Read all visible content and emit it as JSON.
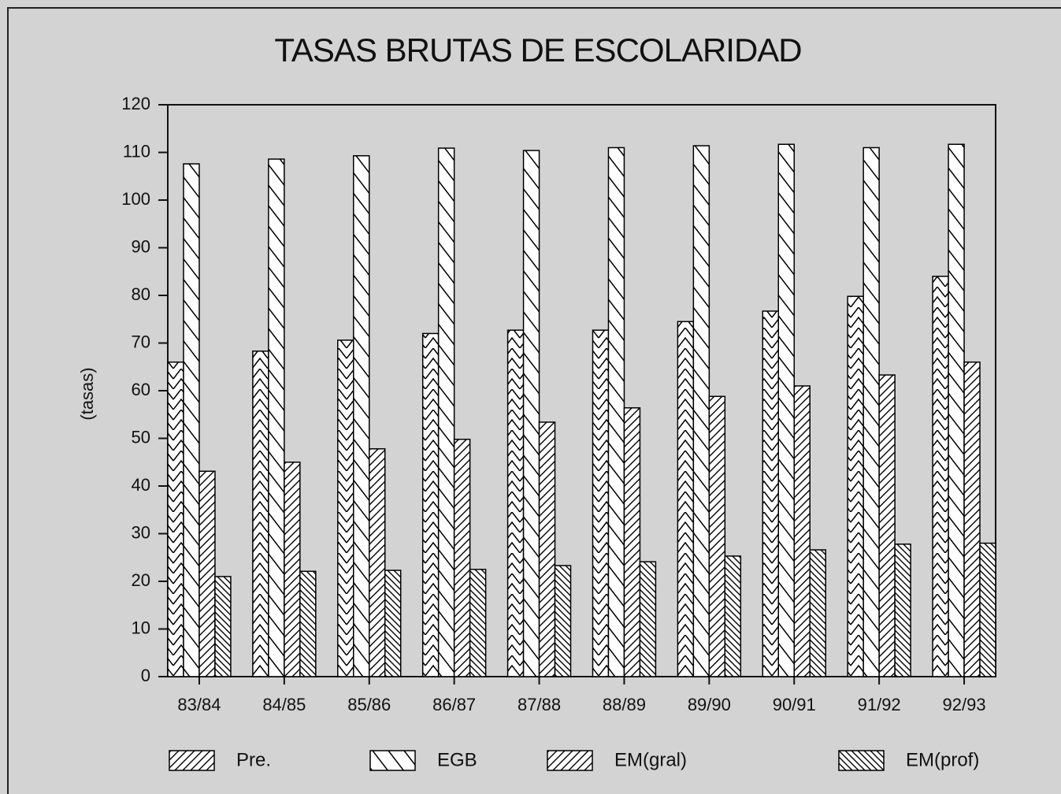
{
  "chart_data": {
    "type": "bar",
    "title": "TASAS BRUTAS DE ESCOLARIDAD",
    "y_label": "(tasas)",
    "categories": [
      "83/84",
      "84/85",
      "85/86",
      "86/87",
      "87/88",
      "88/89",
      "89/90",
      "90/91",
      "91/92",
      "92/93"
    ],
    "series": [
      {
        "name": "Pre.",
        "values": [
          66,
          68.3,
          70.6,
          72,
          72.7,
          72.7,
          74.5,
          76.7,
          79.8,
          84
        ]
      },
      {
        "name": "EGB",
        "values": [
          107.6,
          108.6,
          109.3,
          110.9,
          110.4,
          111,
          111.4,
          111.7,
          111,
          111.7
        ]
      },
      {
        "name": "EM(gral)",
        "values": [
          43.1,
          45,
          47.8,
          49.8,
          53.4,
          56.4,
          58.8,
          61,
          63.3,
          66
        ]
      },
      {
        "name": "EM(prof)",
        "values": [
          21,
          22.1,
          22.3,
          22.5,
          23.3,
          24.1,
          25.3,
          26.6,
          27.8,
          28
        ]
      }
    ],
    "ylim": [
      0,
      120
    ],
    "yticks": [
      0,
      10,
      20,
      30,
      40,
      50,
      60,
      70,
      80,
      90,
      100,
      110,
      120
    ]
  }
}
